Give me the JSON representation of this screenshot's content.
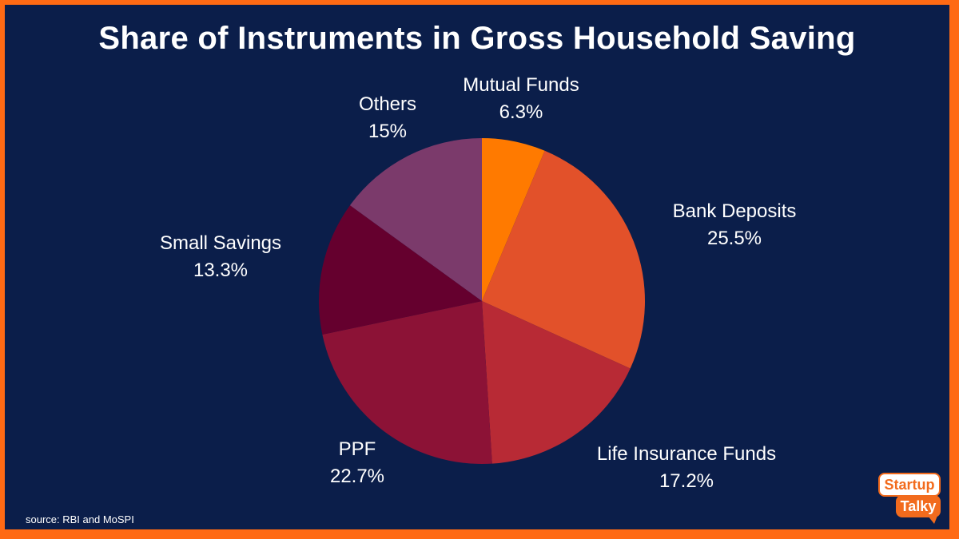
{
  "chart_data": {
    "type": "pie",
    "title": "Share of Instruments in Gross Household Saving",
    "slices": [
      {
        "label": "Mutual Funds",
        "value": 6.3,
        "value_label": "6.3%",
        "color": "#ff7a00"
      },
      {
        "label": "Bank Deposits",
        "value": 25.5,
        "value_label": "25.5%",
        "color": "#e2512a"
      },
      {
        "label": "Life Insurance Funds",
        "value": 17.2,
        "value_label": "17.2%",
        "color": "#b82a35"
      },
      {
        "label": "PPF",
        "value": 22.7,
        "value_label": "22.7%",
        "color": "#8c1236"
      },
      {
        "label": "Small Savings",
        "value": 13.3,
        "value_label": "13.3%",
        "color": "#65002e"
      },
      {
        "label": "Others",
        "value": 15,
        "value_label": "15%",
        "color": "#7b3a6b"
      }
    ],
    "start_angle": "12 o'clock",
    "direction": "clockwise",
    "legend": "none"
  },
  "footer": {
    "source": "source: RBI and MoSPI"
  },
  "logo": {
    "line1": "Startup",
    "line2": "Talky"
  },
  "colors": {
    "background": "#0b1e4a",
    "border": "#ff6a14",
    "brand": "#f26b1d"
  }
}
